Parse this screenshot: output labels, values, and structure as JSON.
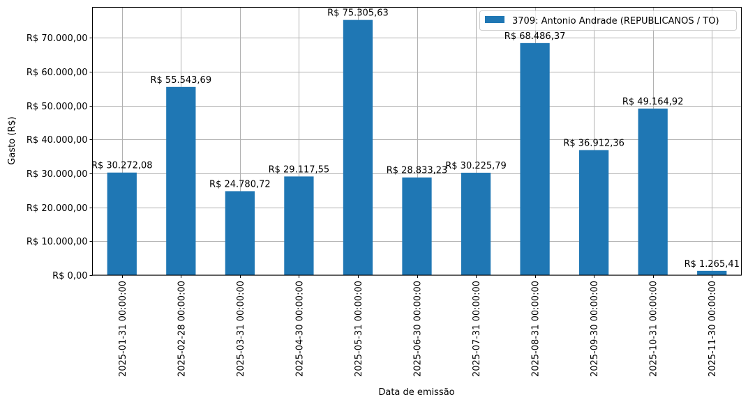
{
  "chart_data": {
    "type": "bar",
    "title": "",
    "xlabel": "Data de emissão",
    "ylabel": "Gasto (R$)",
    "ylim": [
      0,
      79040
    ],
    "grid": true,
    "legend_position": "upper right",
    "bar_color": "#1f77b4",
    "categories": [
      "2025-01-31 00:00:00",
      "2025-02-28 00:00:00",
      "2025-03-31 00:00:00",
      "2025-04-30 00:00:00",
      "2025-05-31 00:00:00",
      "2025-06-30 00:00:00",
      "2025-07-31 00:00:00",
      "2025-08-31 00:00:00",
      "2025-09-30 00:00:00",
      "2025-10-31 00:00:00",
      "2025-11-30 00:00:00"
    ],
    "series": [
      {
        "name": "3709: Antonio Andrade (REPUBLICANOS / TO)",
        "values": [
          30272.08,
          55543.69,
          24780.72,
          29117.55,
          75305.63,
          28833.23,
          30225.79,
          68486.37,
          36912.36,
          49164.92,
          1265.41
        ]
      }
    ],
    "data_labels": [
      "R$ 30.272,08",
      "R$ 55.543,69",
      "R$ 24.780,72",
      "R$ 29.117,55",
      "R$ 75.305,63",
      "R$ 28.833,23",
      "R$ 30.225,79",
      "R$ 68.486,37",
      "R$ 36.912,36",
      "R$ 49.164,92",
      "R$ 1.265,41"
    ],
    "y_ticks": [
      {
        "value": 0,
        "label": "R$ 0,00"
      },
      {
        "value": 10000,
        "label": "R$ 10.000,00"
      },
      {
        "value": 20000,
        "label": "R$ 20.000,00"
      },
      {
        "value": 30000,
        "label": "R$ 30.000,00"
      },
      {
        "value": 40000,
        "label": "R$ 40.000,00"
      },
      {
        "value": 50000,
        "label": "R$ 50.000,00"
      },
      {
        "value": 60000,
        "label": "R$ 60.000,00"
      },
      {
        "value": 70000,
        "label": "R$ 70.000,00"
      }
    ]
  }
}
